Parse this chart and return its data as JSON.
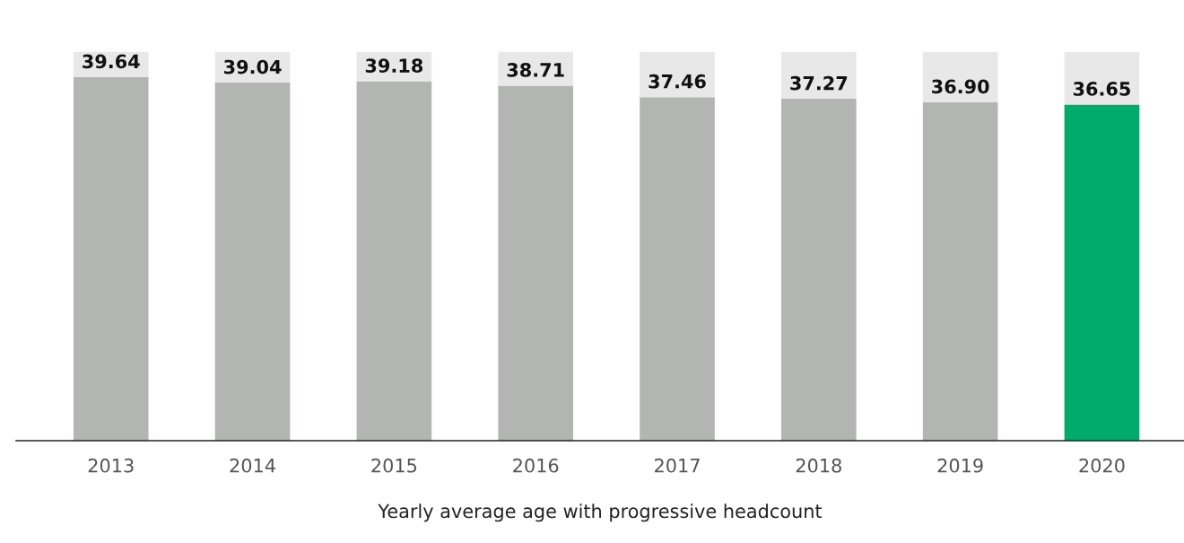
{
  "chart_data": {
    "type": "bar",
    "xlabel": "Yearly average age with progressive headcount",
    "categories": [
      "2013",
      "2014",
      "2015",
      "2016",
      "2017",
      "2018",
      "2019",
      "2020"
    ],
    "stacked": true,
    "tick_labels": "x",
    "grid": false,
    "legend": false,
    "series": [
      {
        "colors": [
          "#b3b5b3",
          "#b3b5b3",
          "#b3b5b3",
          "#b3b5b3",
          "#b3b5b3",
          "#b3b5b3",
          "#b3b5b3",
          "#00ab6b"
        ],
        "values": [
          39.64,
          39.04,
          39.18,
          38.71,
          37.46,
          37.27,
          36.9,
          36.65
        ],
        "value_labels": [
          "39.64",
          "39.04",
          "39.18",
          "38.71",
          "37.46",
          "37.27",
          "36.90",
          "36.65"
        ]
      },
      {
        "color": "#e8e8e8",
        "values": [
          2.76,
          3.36,
          3.22,
          3.69,
          4.94,
          5.13,
          5.5,
          5.75
        ]
      }
    ]
  }
}
